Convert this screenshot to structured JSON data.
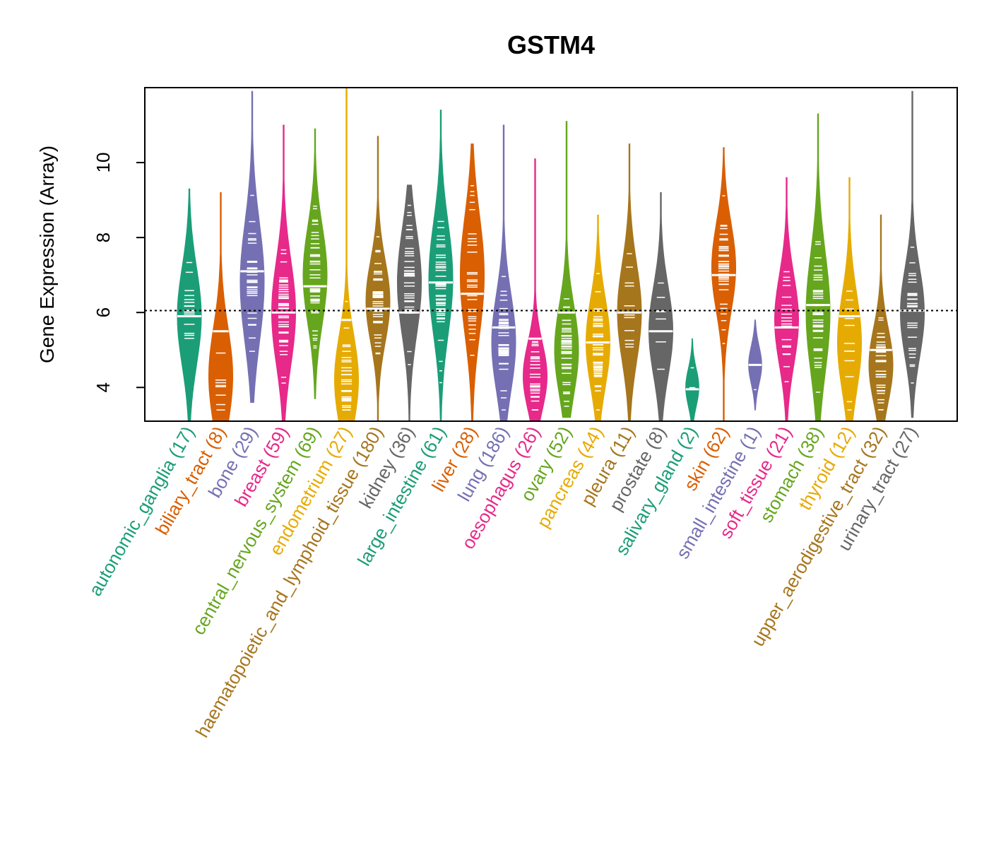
{
  "chart_data": {
    "type": "violin",
    "title": "GSTM4",
    "ylabel": "Gene Expression (Array)",
    "xlabel": "",
    "ylim": [
      3.1,
      12.0
    ],
    "yticks": [
      4,
      6,
      8,
      10
    ],
    "reference_line": 6.05,
    "palette": [
      "#1b9e77",
      "#d95f02",
      "#7570b3",
      "#e7298a",
      "#66a61e",
      "#e6ab02",
      "#a6761d",
      "#666666"
    ],
    "categories": [
      {
        "name": "autonomic_ganglia",
        "count_label": "(17)",
        "color": "#1b9e77",
        "min": 3.1,
        "max": 9.3,
        "median": 5.9,
        "mode": 5.9,
        "spread": 1.3
      },
      {
        "name": "biliary_tract",
        "count_label": "(8)",
        "color": "#d95f02",
        "min": 3.1,
        "max": 9.2,
        "median": 5.5,
        "mode": 4.3,
        "spread": 1.3
      },
      {
        "name": "bone",
        "count_label": "(29)",
        "color": "#7570b3",
        "min": 3.6,
        "max": 11.9,
        "median": 7.1,
        "mode": 6.8,
        "spread": 1.6
      },
      {
        "name": "breast",
        "count_label": "(59)",
        "color": "#e7298a",
        "min": 3.1,
        "max": 11.0,
        "median": 6.0,
        "mode": 6.0,
        "spread": 1.4
      },
      {
        "name": "central_nervous_system",
        "count_label": "(69)",
        "color": "#66a61e",
        "min": 3.7,
        "max": 10.9,
        "median": 6.7,
        "mode": 7.0,
        "spread": 1.3
      },
      {
        "name": "endometrium",
        "count_label": "(27)",
        "color": "#e6ab02",
        "min": 3.1,
        "max": 12.0,
        "median": 5.8,
        "mode": 4.2,
        "spread": 1.2
      },
      {
        "name": "haematopoietic_and_lymphoid_tissue",
        "count_label": "(180)",
        "color": "#a6761d",
        "min": 3.1,
        "max": 10.7,
        "median": 6.1,
        "mode": 6.3,
        "spread": 1.1
      },
      {
        "name": "kidney",
        "count_label": "(36)",
        "color": "#666666",
        "min": 3.1,
        "max": 9.4,
        "median": 6.0,
        "mode": 6.8,
        "spread": 1.4
      },
      {
        "name": "large_intestine",
        "count_label": "(61)",
        "color": "#1b9e77",
        "min": 3.1,
        "max": 11.4,
        "median": 6.8,
        "mode": 6.9,
        "spread": 1.5
      },
      {
        "name": "liver",
        "count_label": "(28)",
        "color": "#d95f02",
        "min": 3.1,
        "max": 10.5,
        "median": 6.5,
        "mode": 7.0,
        "spread": 1.6
      },
      {
        "name": "lung",
        "count_label": "(186)",
        "color": "#7570b3",
        "min": 3.1,
        "max": 11.0,
        "median": 5.6,
        "mode": 5.2,
        "spread": 1.3
      },
      {
        "name": "oesophagus",
        "count_label": "(26)",
        "color": "#e7298a",
        "min": 3.1,
        "max": 10.1,
        "median": 5.3,
        "mode": 4.3,
        "spread": 0.9
      },
      {
        "name": "ovary",
        "count_label": "(52)",
        "color": "#66a61e",
        "min": 3.2,
        "max": 11.1,
        "median": 6.0,
        "mode": 5.0,
        "spread": 1.2
      },
      {
        "name": "pancreas",
        "count_label": "(44)",
        "color": "#e6ab02",
        "min": 3.1,
        "max": 8.6,
        "median": 5.2,
        "mode": 5.2,
        "spread": 1.2
      },
      {
        "name": "pleura",
        "count_label": "(11)",
        "color": "#a6761d",
        "min": 3.1,
        "max": 10.5,
        "median": 6.0,
        "mode": 6.0,
        "spread": 1.3
      },
      {
        "name": "prostate",
        "count_label": "(8)",
        "color": "#666666",
        "min": 3.1,
        "max": 9.2,
        "median": 5.5,
        "mode": 5.5,
        "spread": 1.2
      },
      {
        "name": "salivary_gland",
        "count_label": "(2)",
        "color": "#1b9e77",
        "min": 3.1,
        "max": 5.3,
        "median": 3.95,
        "mode": 4.0,
        "spread": 0.5
      },
      {
        "name": "skin",
        "count_label": "(62)",
        "color": "#d95f02",
        "min": 3.1,
        "max": 10.4,
        "median": 7.0,
        "mode": 7.2,
        "spread": 1.2
      },
      {
        "name": "small_intestine",
        "count_label": "(1)",
        "color": "#7570b3",
        "min": 3.4,
        "max": 5.8,
        "median": 4.6,
        "mode": 4.6,
        "spread": 0.5
      },
      {
        "name": "soft_tissue",
        "count_label": "(21)",
        "color": "#e7298a",
        "min": 3.1,
        "max": 9.6,
        "median": 5.6,
        "mode": 5.8,
        "spread": 1.2
      },
      {
        "name": "stomach",
        "count_label": "(38)",
        "color": "#66a61e",
        "min": 3.1,
        "max": 11.3,
        "median": 6.2,
        "mode": 6.0,
        "spread": 1.6
      },
      {
        "name": "thyroid",
        "count_label": "(12)",
        "color": "#e6ab02",
        "min": 3.1,
        "max": 9.6,
        "median": 5.9,
        "mode": 5.2,
        "spread": 1.3
      },
      {
        "name": "upper_aerodigestive_tract",
        "count_label": "(32)",
        "color": "#a6761d",
        "min": 3.1,
        "max": 8.6,
        "median": 5.0,
        "mode": 4.6,
        "spread": 1.0
      },
      {
        "name": "urinary_tract",
        "count_label": "(27)",
        "color": "#666666",
        "min": 3.2,
        "max": 11.9,
        "median": 6.05,
        "mode": 6.0,
        "spread": 1.2
      }
    ]
  }
}
